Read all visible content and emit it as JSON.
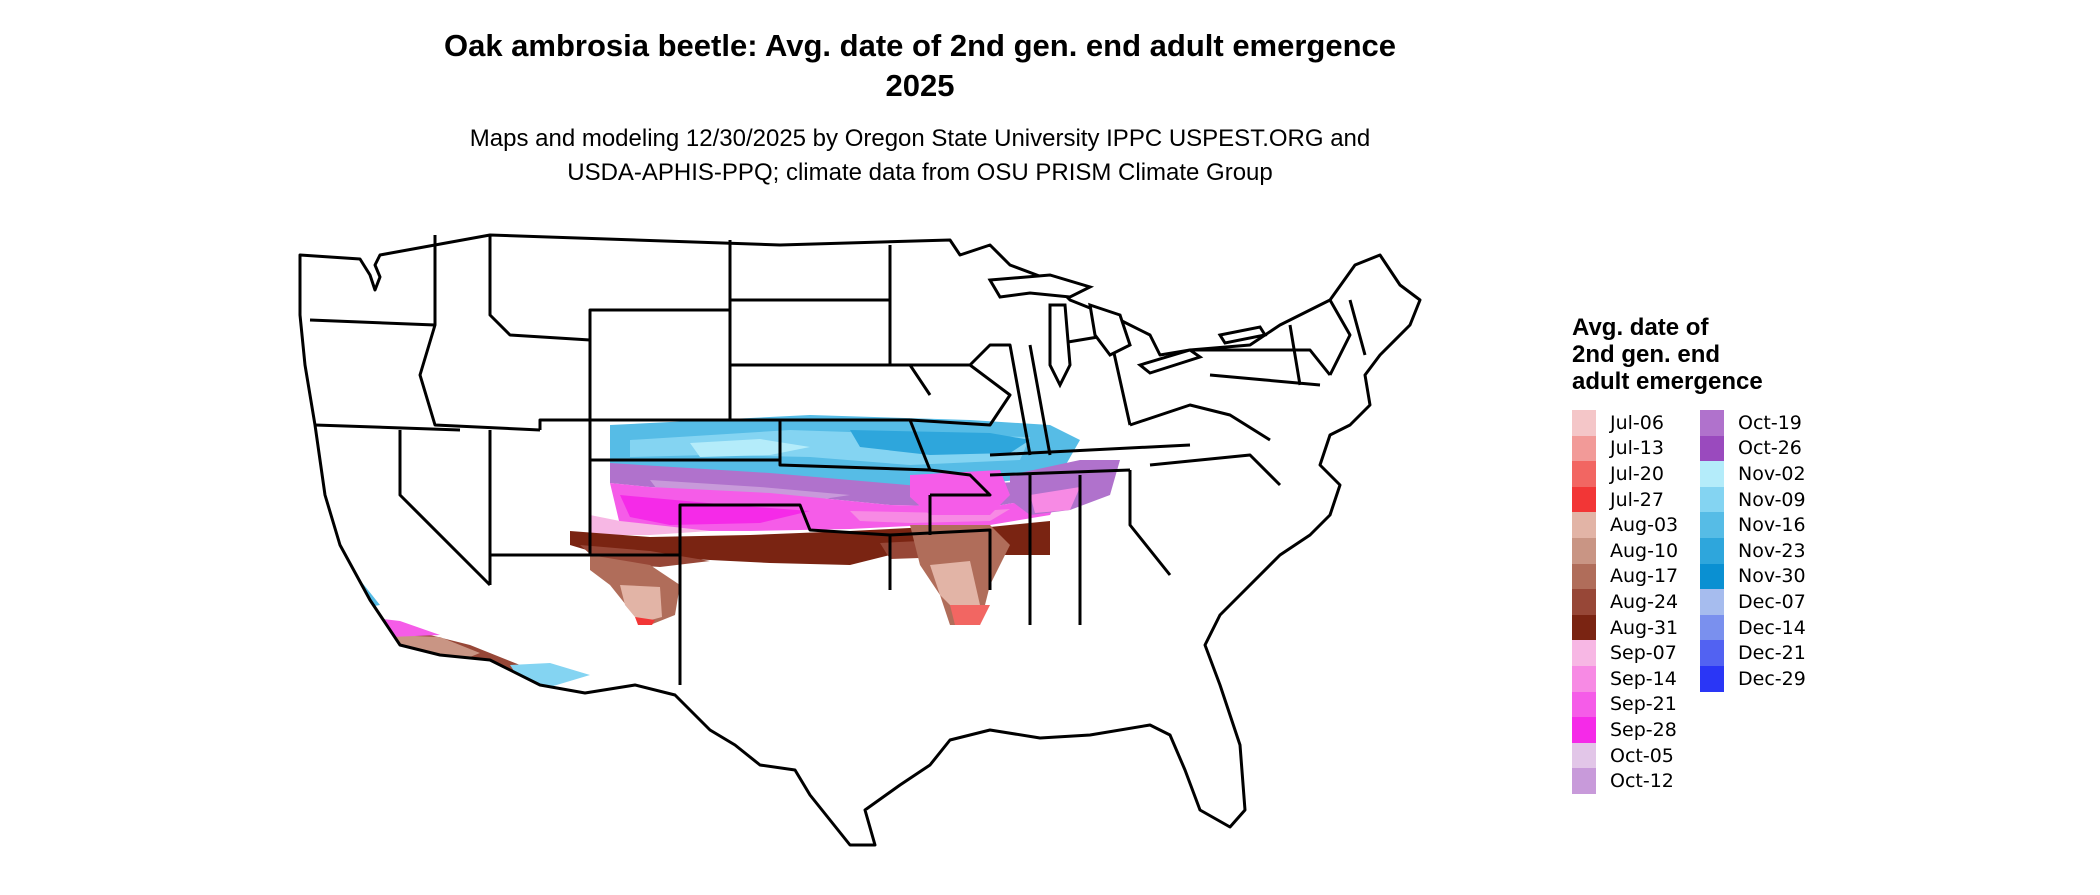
{
  "title_line1": "Oak ambrosia beetle: Avg. date of 2nd gen. end adult emergence",
  "title_line2": "2025",
  "subtitle_line1": "Maps and modeling 12/30/2025 by Oregon State University IPPC USPEST.ORG and",
  "subtitle_line2": "USDA-APHIS-PPQ; climate data from OSU PRISM Climate Group",
  "legend": {
    "title_line1": "Avg. date of",
    "title_line2": "2nd gen. end",
    "title_line3": "adult emergence",
    "items": [
      {
        "label": "Jul-06",
        "color": "#f4c6c8"
      },
      {
        "label": "Jul-13",
        "color": "#f29a98"
      },
      {
        "label": "Jul-20",
        "color": "#f26662"
      },
      {
        "label": "Jul-27",
        "color": "#f23636"
      },
      {
        "label": "Aug-03",
        "color": "#e2b4a6"
      },
      {
        "label": "Aug-10",
        "color": "#c99584"
      },
      {
        "label": "Aug-17",
        "color": "#b06d5a"
      },
      {
        "label": "Aug-24",
        "color": "#974737"
      },
      {
        "label": "Aug-31",
        "color": "#7a2412"
      },
      {
        "label": "Sep-07",
        "color": "#f7b7e4"
      },
      {
        "label": "Sep-14",
        "color": "#f78ae4"
      },
      {
        "label": "Sep-21",
        "color": "#f55ce8"
      },
      {
        "label": "Sep-28",
        "color": "#f52ae8"
      },
      {
        "label": "Oct-05",
        "color": "#e2c6e8"
      },
      {
        "label": "Oct-12",
        "color": "#c89ada"
      },
      {
        "label": "Oct-19",
        "color": "#b072cc"
      },
      {
        "label": "Oct-26",
        "color": "#9a4abe"
      },
      {
        "label": "Nov-02",
        "color": "#b4ecfa"
      },
      {
        "label": "Nov-09",
        "color": "#84d4f2"
      },
      {
        "label": "Nov-16",
        "color": "#56bce6"
      },
      {
        "label": "Nov-23",
        "color": "#2ea6dc"
      },
      {
        "label": "Nov-30",
        "color": "#0a90d2"
      },
      {
        "label": "Dec-07",
        "color": "#a6bcee"
      },
      {
        "label": "Dec-14",
        "color": "#7a90ee"
      },
      {
        "label": "Dec-21",
        "color": "#5262f2"
      },
      {
        "label": "Dec-29",
        "color": "#2a36f6"
      }
    ]
  }
}
